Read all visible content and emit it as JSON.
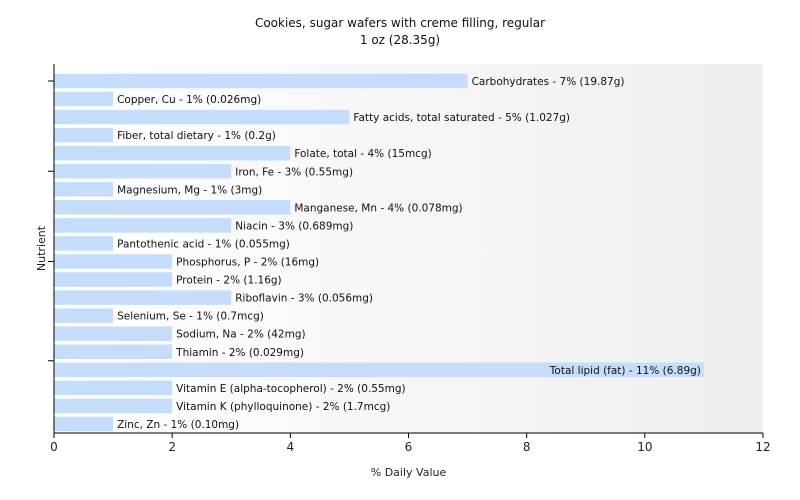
{
  "chart_data": {
    "type": "bar",
    "orientation": "horizontal",
    "title": "Cookies, sugar wafers with creme filling, regular",
    "subtitle": "1 oz (28.35g)",
    "xlabel": "% Daily Value",
    "ylabel": "Nutrient",
    "xlim": [
      0,
      12
    ],
    "xticks": [
      0,
      2,
      4,
      6,
      8,
      10,
      12
    ],
    "grid": false,
    "colors": {
      "bar": "#c6dcfb"
    },
    "categories": [
      "Carbohydrates",
      "Copper, Cu",
      "Fatty acids, total saturated",
      "Fiber, total dietary",
      "Folate, total",
      "Iron, Fe",
      "Magnesium, Mg",
      "Manganese, Mn",
      "Niacin",
      "Pantothenic acid",
      "Phosphorus, P",
      "Protein",
      "Riboflavin",
      "Selenium, Se",
      "Sodium, Na",
      "Thiamin",
      "Total lipid (fat)",
      "Vitamin E (alpha-tocopherol)",
      "Vitamin K (phylloquinone)",
      "Zinc, Zn"
    ],
    "values": [
      7,
      1,
      5,
      1,
      4,
      3,
      1,
      4,
      3,
      1,
      2,
      2,
      3,
      1,
      2,
      2,
      11,
      2,
      2,
      1
    ],
    "labels": [
      "Carbohydrates - 7% (19.87g)",
      "Copper, Cu - 1% (0.026mg)",
      "Fatty acids, total saturated - 5% (1.027g)",
      "Fiber, total dietary - 1% (0.2g)",
      "Folate, total - 4% (15mcg)",
      "Iron, Fe - 3% (0.55mg)",
      "Magnesium, Mg - 1% (3mg)",
      "Manganese, Mn - 4% (0.078mg)",
      "Niacin - 3% (0.689mg)",
      "Pantothenic acid - 1% (0.055mg)",
      "Phosphorus, P - 2% (16mg)",
      "Protein - 2% (1.16g)",
      "Riboflavin - 3% (0.056mg)",
      "Selenium, Se - 1% (0.7mcg)",
      "Sodium, Na - 2% (42mg)",
      "Thiamin - 2% (0.029mg)",
      "Total lipid (fat) - 11% (6.89g)",
      "Vitamin E (alpha-tocopherol) - 2% (0.55mg)",
      "Vitamin K (phylloquinone) - 2% (1.7mcg)",
      "Zinc, Zn - 1% (0.10mg)"
    ]
  }
}
